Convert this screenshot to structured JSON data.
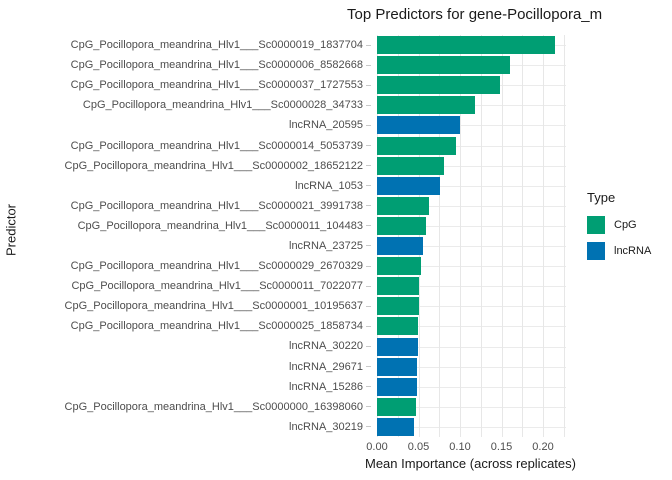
{
  "chart_data": {
    "type": "bar",
    "orientation": "horizontal",
    "title": "Top Predictors for gene-Pocillopora_m",
    "xlabel": "Mean Importance (across replicates)",
    "ylabel": "Predictor",
    "x_tick_labels": [
      "0.00",
      "0.05",
      "0.10",
      "0.15",
      "0.20"
    ],
    "x_tick_values": [
      0,
      0.05,
      0.1,
      0.15,
      0.2
    ],
    "xlim": [
      0,
      0.2277
    ],
    "minor_grid_step": 0.025,
    "grid": "on",
    "type_colors": {
      "CpG": "#009E73",
      "lncRNA": "#0072B2"
    },
    "legend": {
      "title": "Type",
      "position": "right",
      "entries": [
        {
          "label": "CpG",
          "color": "#009E73"
        },
        {
          "label": "lncRNA",
          "color": "#0072B2"
        }
      ]
    },
    "bars": [
      {
        "label": "CpG_Pocillopora_meandrina_Hlv1___Sc0000019_1837704",
        "type": "CpG",
        "value": 0.214
      },
      {
        "label": "CpG_Pocillopora_meandrina_Hlv1___Sc0000006_8582668",
        "type": "CpG",
        "value": 0.16
      },
      {
        "label": "CpG_Pocillopora_meandrina_Hlv1___Sc0000037_1727553",
        "type": "CpG",
        "value": 0.148
      },
      {
        "label": "CpG_Pocillopora_meandrina_Hlv1___Sc0000028_34733",
        "type": "CpG",
        "value": 0.118
      },
      {
        "label": "lncRNA_20595",
        "type": "lncRNA",
        "value": 0.1
      },
      {
        "label": "CpG_Pocillopora_meandrina_Hlv1___Sc0000014_5053739",
        "type": "CpG",
        "value": 0.095
      },
      {
        "label": "CpG_Pocillopora_meandrina_Hlv1___Sc0000002_18652122",
        "type": "CpG",
        "value": 0.081
      },
      {
        "label": "lncRNA_1053",
        "type": "lncRNA",
        "value": 0.076
      },
      {
        "label": "CpG_Pocillopora_meandrina_Hlv1___Sc0000021_3991738",
        "type": "CpG",
        "value": 0.063
      },
      {
        "label": "CpG_Pocillopora_meandrina_Hlv1___Sc0000011_104483",
        "type": "CpG",
        "value": 0.059
      },
      {
        "label": "lncRNA_23725",
        "type": "lncRNA",
        "value": 0.056
      },
      {
        "label": "CpG_Pocillopora_meandrina_Hlv1___Sc0000029_2670329",
        "type": "CpG",
        "value": 0.053
      },
      {
        "label": "CpG_Pocillopora_meandrina_Hlv1___Sc0000011_7022077",
        "type": "CpG",
        "value": 0.051
      },
      {
        "label": "CpG_Pocillopora_meandrina_Hlv1___Sc0000001_10195637",
        "type": "CpG",
        "value": 0.05
      },
      {
        "label": "CpG_Pocillopora_meandrina_Hlv1___Sc0000025_1858734",
        "type": "CpG",
        "value": 0.0495
      },
      {
        "label": "lncRNA_30220",
        "type": "lncRNA",
        "value": 0.049
      },
      {
        "label": "lncRNA_29671",
        "type": "lncRNA",
        "value": 0.0485
      },
      {
        "label": "lncRNA_15286",
        "type": "lncRNA",
        "value": 0.048
      },
      {
        "label": "CpG_Pocillopora_meandrina_Hlv1___Sc0000000_16398060",
        "type": "CpG",
        "value": 0.0475
      },
      {
        "label": "lncRNA_30219",
        "type": "lncRNA",
        "value": 0.044
      }
    ]
  }
}
